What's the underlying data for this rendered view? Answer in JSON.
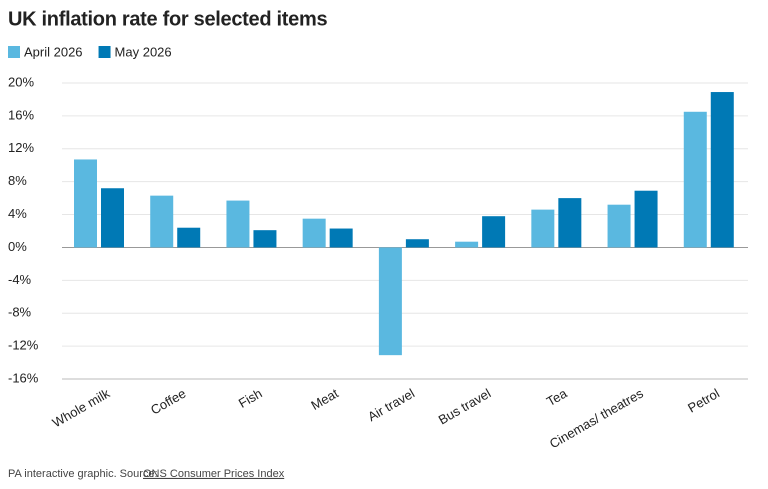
{
  "chart_data": {
    "type": "bar",
    "title": "UK inflation rate for selected items",
    "categories": [
      "Whole milk",
      "Coffee",
      "Fish",
      "Meat",
      "Air travel",
      "Bus travel",
      "Tea",
      "Cinemas/ theatres",
      "Petrol"
    ],
    "series": [
      {
        "name": "April 2026",
        "color": "#5ab8e0",
        "values": [
          10.7,
          6.3,
          5.7,
          3.5,
          -13.1,
          0.7,
          4.6,
          5.2,
          16.5
        ]
      },
      {
        "name": "May 2026",
        "color": "#0079b5",
        "values": [
          7.2,
          2.4,
          2.1,
          2.3,
          1.0,
          3.8,
          6.0,
          6.9,
          18.9
        ]
      }
    ],
    "ylim": [
      -16,
      20
    ],
    "yticks": [
      {
        "value": 20,
        "label": "20%"
      },
      {
        "value": 16,
        "label": "16%"
      },
      {
        "value": 12,
        "label": "12%"
      },
      {
        "value": 8,
        "label": "8%"
      },
      {
        "value": 4,
        "label": "4%"
      },
      {
        "value": 0,
        "label": "0%"
      },
      {
        "value": -4,
        "label": "-4%"
      },
      {
        "value": -8,
        "label": "-8%"
      },
      {
        "value": -12,
        "label": "-12%"
      },
      {
        "value": -16,
        "label": "-16%"
      }
    ],
    "grid": true,
    "legend": "top-left",
    "note": "PA interactive graphic. Source:",
    "source": "ONS Consumer Prices Index"
  }
}
